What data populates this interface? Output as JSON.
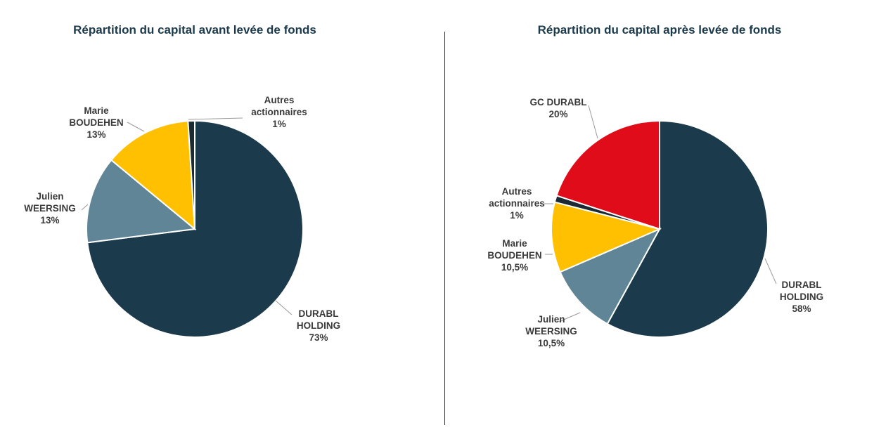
{
  "chart_data": [
    {
      "type": "pie",
      "title": "Répartition du capital avant levée de fonds",
      "slices": [
        {
          "label": [
            "DURABL",
            "HOLDING"
          ],
          "value": 73,
          "value_label": "73%",
          "color": "#1b3a4b"
        },
        {
          "label": [
            "Julien",
            "WEERSING"
          ],
          "value": 13,
          "value_label": "13%",
          "color": "#5f8596"
        },
        {
          "label": [
            "Marie",
            "BOUDEHEN"
          ],
          "value": 13,
          "value_label": "13%",
          "color": "#fec000"
        },
        {
          "label": [
            "Autres",
            "actionnaires"
          ],
          "value": 1,
          "value_label": "1%",
          "color": "#1b2a33"
        }
      ]
    },
    {
      "type": "pie",
      "title": "Répartition du capital après levée de fonds",
      "slices": [
        {
          "label": [
            "DURABL",
            "HOLDING"
          ],
          "value": 58,
          "value_label": "58%",
          "color": "#1b3a4b"
        },
        {
          "label": [
            "Julien",
            "WEERSING"
          ],
          "value": 10.5,
          "value_label": "10,5%",
          "color": "#5f8596"
        },
        {
          "label": [
            "Marie",
            "BOUDEHEN"
          ],
          "value": 10.5,
          "value_label": "10,5%",
          "color": "#fec000"
        },
        {
          "label": [
            "Autres",
            "actionnaires"
          ],
          "value": 1,
          "value_label": "1%",
          "color": "#1b2a33"
        },
        {
          "label": [
            "GC DURABL"
          ],
          "value": 20,
          "value_label": "20%",
          "color": "#e10c1a"
        }
      ]
    }
  ]
}
